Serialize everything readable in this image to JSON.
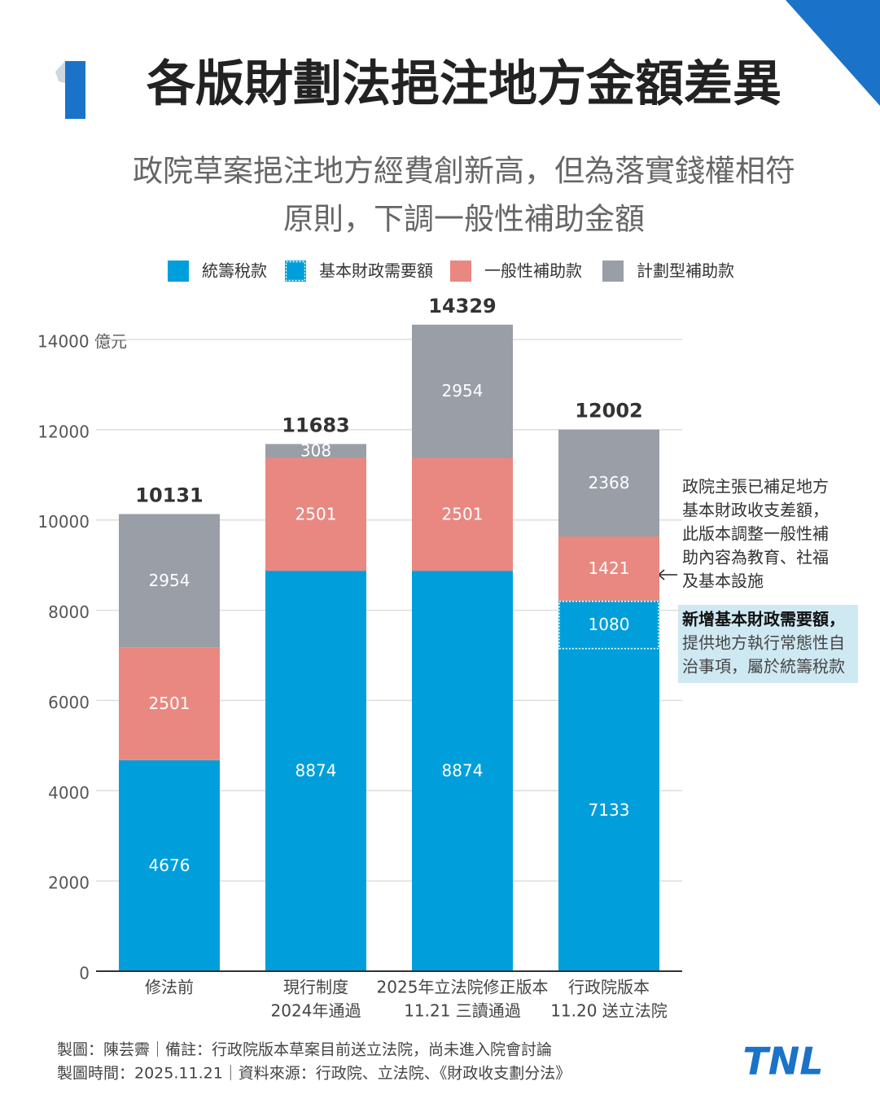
{
  "chart_data": {
    "type": "stacked-bar",
    "title": "各版財劃法挹注地方金額差異",
    "subtitle": [
      "政院草案挹注地方經費創新高，但為落實錢權相符",
      "原則，下調一般性補助金額"
    ],
    "categories": [
      [
        "修法前"
      ],
      [
        "現行制度",
        "2024年通過"
      ],
      [
        "2025年立法院修正版本",
        "11.21 三讀通過"
      ],
      [
        "行政院版本",
        "11.20 送立法院"
      ]
    ],
    "series": [
      {
        "name": "統籌稅款",
        "color": "#009fdb",
        "values": [
          4676,
          8874,
          8874,
          7133
        ]
      },
      {
        "name": "基本財政需要額",
        "color": "#009fdb",
        "dotted": true,
        "values": [
          null,
          null,
          null,
          1080
        ]
      },
      {
        "name": "一般性補助款",
        "color": "#e98880",
        "values": [
          2501,
          2501,
          2501,
          1421
        ]
      },
      {
        "name": "計劃型補助款",
        "color": "#9a9ea7",
        "values": [
          2954,
          308,
          2954,
          2368
        ]
      }
    ],
    "totals": [
      10131,
      11683,
      14329,
      12002
    ],
    "ylim": [
      0,
      14000
    ],
    "yticks": [
      0,
      2000,
      4000,
      6000,
      8000,
      10000,
      12000,
      {
        "value": 14000,
        "label": "14000 億元"
      }
    ],
    "grid": true,
    "annotations": [
      [
        "政院主張已補足地方",
        "基本財政收支差額，",
        "此版本調整一般性補",
        "助內容為教育、社福",
        "及基本設施"
      ],
      [
        "新增基本財政需要額，",
        "提供地方執行常態性自",
        "治事項，屬於統籌稅款"
      ]
    ],
    "footer": [
      "製圖：陳芸霽｜備註：行政院版本草案目前送立法院，尚未進入院會討論",
      "製圖時間：2025.11.21｜資料來源：行政院、立法院、《財政收支劃分法》"
    ],
    "logo": "TNL"
  }
}
